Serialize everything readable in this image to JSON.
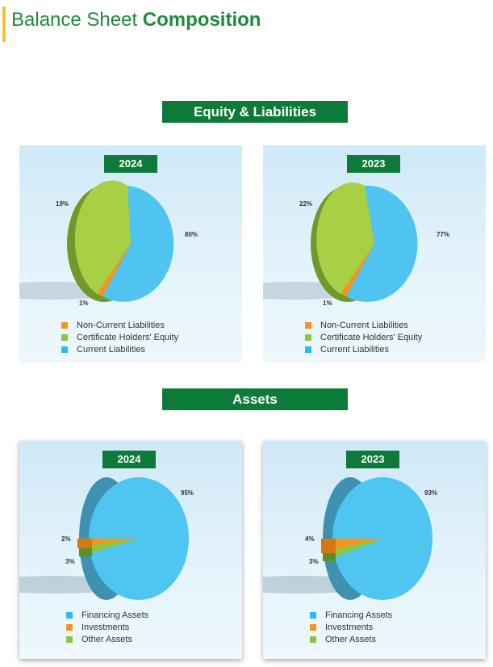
{
  "page": {
    "title_light": "Balance Sheet",
    "title_bold": "Composition"
  },
  "sections": {
    "equity": {
      "label": "Equity & Liabilities"
    },
    "assets": {
      "label": "Assets"
    }
  },
  "colors": {
    "green_dark": "#0e7a3a",
    "accent_yellow": "#f2c12e",
    "blue": "#2bbcf0",
    "orange": "#f7931e",
    "green": "#8cc63f"
  },
  "chart_data": [
    {
      "type": "pie",
      "section": "Equity & Liabilities",
      "title": "2024",
      "labels": [
        "Non-Current Liabilities",
        "Certificate Holders' Equity",
        "Current Liabilities"
      ],
      "values": [
        1,
        19,
        80
      ],
      "value_labels": [
        "1%",
        "19%",
        "80%"
      ],
      "colors": [
        "#f7931e",
        "#8cc63f",
        "#2bbcf0"
      ]
    },
    {
      "type": "pie",
      "section": "Equity & Liabilities",
      "title": "2023",
      "labels": [
        "Non-Current Liabilities",
        "Certificate Holders' Equity",
        "Current Liabilities"
      ],
      "values": [
        1,
        22,
        77
      ],
      "value_labels": [
        "1%",
        "22%",
        "77%"
      ],
      "colors": [
        "#f7931e",
        "#8cc63f",
        "#2bbcf0"
      ]
    },
    {
      "type": "pie",
      "section": "Assets",
      "title": "2024",
      "labels": [
        "Financing Assets",
        "Investments",
        "Other Assets"
      ],
      "values": [
        95,
        2,
        3
      ],
      "value_labels": [
        "95%",
        "2%",
        "3%"
      ],
      "colors": [
        "#2bbcf0",
        "#f7931e",
        "#8cc63f"
      ]
    },
    {
      "type": "pie",
      "section": "Assets",
      "title": "2023",
      "labels": [
        "Financing Assets",
        "Investments",
        "Other Assets"
      ],
      "values": [
        93,
        4,
        3
      ],
      "value_labels": [
        "93%",
        "4%",
        "3%"
      ],
      "colors": [
        "#2bbcf0",
        "#f7931e",
        "#8cc63f"
      ]
    }
  ]
}
